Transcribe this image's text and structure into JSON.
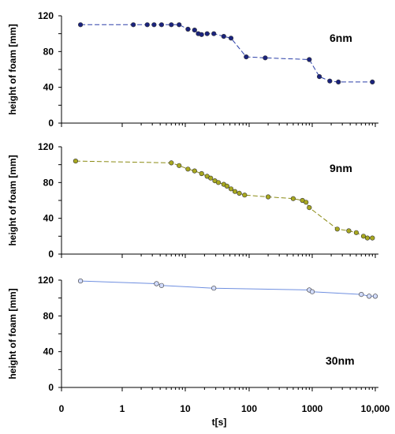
{
  "chart_data": [
    {
      "type": "line",
      "annotation": "6nm",
      "ylabel": "height of foam [mm]",
      "ylim": [
        0,
        120
      ],
      "y_ticks": [
        "0",
        "40",
        "80",
        "120"
      ],
      "line_color": "#2b3fa8",
      "marker_color": "#1a237e",
      "line_style": "dashed",
      "series": [
        {
          "x": [
            0.15,
            1.5,
            2.5,
            3.2,
            4.2,
            6,
            8,
            11,
            14,
            16,
            18,
            22,
            28,
            40,
            52,
            90,
            180,
            900,
            1300,
            1900,
            2600,
            9000
          ],
          "y": [
            110,
            110,
            110,
            110,
            110,
            110,
            110,
            105,
            104,
            100,
            99,
            100,
            100,
            97,
            95,
            74,
            73,
            71,
            52,
            47,
            46,
            46
          ]
        }
      ]
    },
    {
      "type": "line",
      "annotation": "9nm",
      "ylabel": "height of foam [mm]",
      "ylim": [
        0,
        120
      ],
      "y_ticks": [
        "0",
        "40",
        "80",
        "120"
      ],
      "line_color": "#8b8b14",
      "marker_color": "#a8a820",
      "line_style": "dashed",
      "series": [
        {
          "x": [
            0.12,
            6,
            8,
            11,
            14,
            18,
            22,
            25,
            29,
            33,
            40,
            45,
            52,
            60,
            70,
            85,
            200,
            500,
            700,
            800,
            900,
            2500,
            3800,
            5000,
            6500,
            7500,
            9000
          ],
          "y": [
            104,
            102,
            99,
            95,
            93,
            90,
            87,
            85,
            82,
            80,
            78,
            76,
            73,
            70,
            68,
            66,
            64,
            62,
            60,
            58,
            52,
            28,
            26,
            24,
            20,
            18,
            18
          ]
        }
      ]
    },
    {
      "type": "line",
      "annotation": "30nm",
      "ylabel": "height of foam [mm]",
      "xlabel": "t[s]",
      "ylim": [
        0,
        120
      ],
      "y_ticks": [
        "0",
        "40",
        "80",
        "120"
      ],
      "x_ticks": [
        "0",
        "1",
        "10",
        "100",
        "1000",
        "10,000"
      ],
      "line_color": "#6f8fe0",
      "marker_color": "#d2dcff",
      "line_style": "solid",
      "series": [
        {
          "x": [
            0.15,
            3.5,
            4.2,
            28,
            900,
            1000,
            6000,
            8000,
            10000
          ],
          "y": [
            119,
            116,
            114,
            111,
            109,
            107,
            104,
            102,
            102
          ]
        }
      ]
    }
  ]
}
